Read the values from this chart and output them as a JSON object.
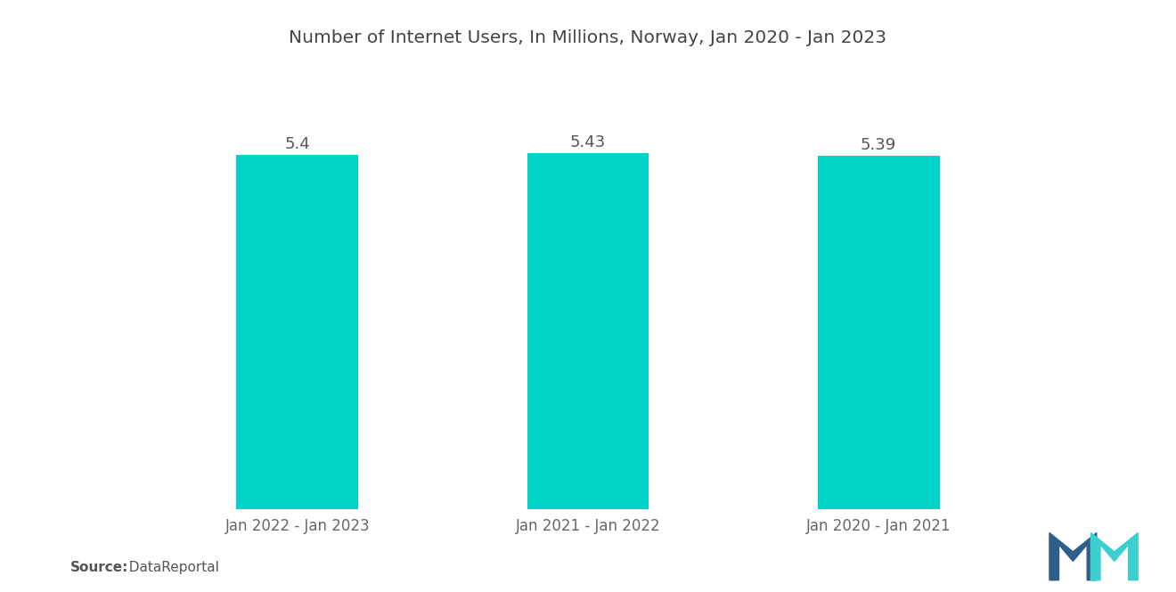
{
  "title": "Number of Internet Users, In Millions, Norway, Jan 2020 - Jan 2023",
  "categories": [
    "Jan 2022 - Jan 2023",
    "Jan 2021 - Jan 2022",
    "Jan 2020 - Jan 2021"
  ],
  "values": [
    5.4,
    5.43,
    5.39
  ],
  "bar_color": "#00D4C8",
  "value_labels": [
    "5.4",
    "5.43",
    "5.39"
  ],
  "source_bold": "Source:",
  "source_normal": "  DataReportal",
  "title_fontsize": 14.5,
  "label_fontsize": 12,
  "value_fontsize": 13,
  "source_fontsize": 11,
  "background_color": "#ffffff",
  "ylim_min": 0,
  "ylim_max": 6.5,
  "bar_width": 0.42
}
